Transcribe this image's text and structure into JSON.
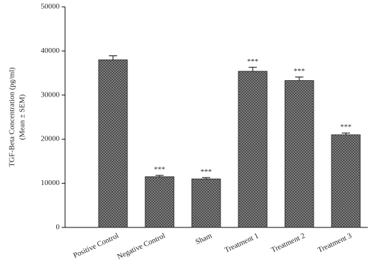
{
  "chart_data": {
    "type": "bar",
    "y_label": [
      "TGF-Beta Concentration (pg/ml)",
      "(Mean ± SEM)"
    ],
    "categories": [
      "Positive Control",
      "Negative Control",
      "Sham",
      "Treatment 1",
      "Treatment 2",
      "Treatment 3"
    ],
    "values": [
      38000,
      11500,
      11000,
      35400,
      33300,
      21000
    ],
    "errors": [
      900,
      300,
      300,
      900,
      800,
      400
    ],
    "annotations": [
      null,
      "***",
      "***",
      "***",
      "***",
      "***"
    ],
    "color": "#8a8a8a",
    "ylim": [
      0,
      50000
    ],
    "yticks": [
      0,
      10000,
      20000,
      30000,
      40000,
      50000
    ]
  }
}
